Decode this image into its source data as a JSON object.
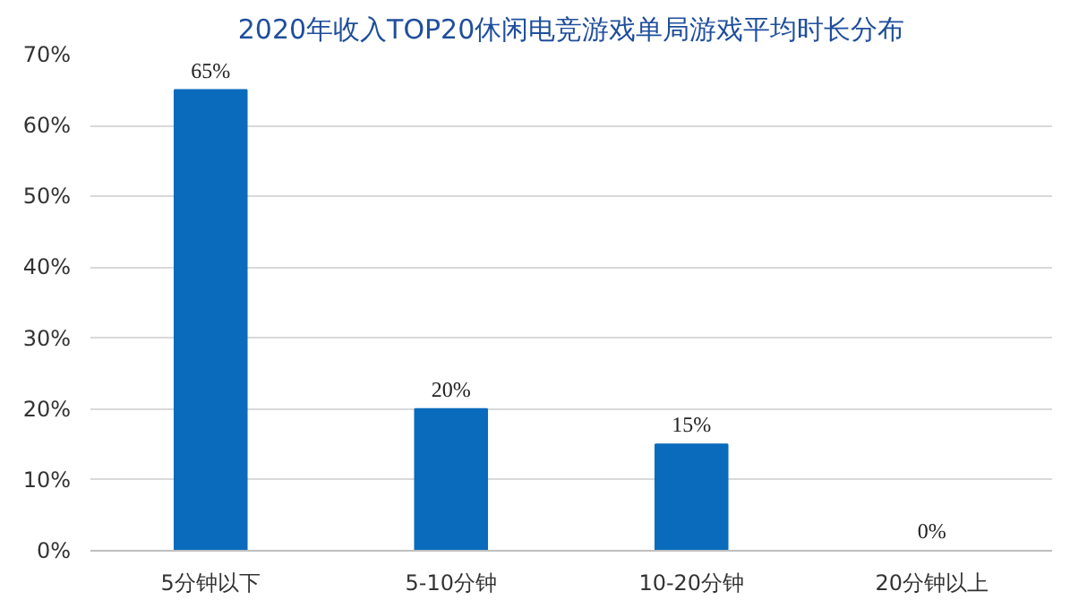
{
  "chart_data": {
    "type": "bar",
    "title": "2020年收入TOP20休闲电竞游戏单局游戏平均时长分布",
    "categories": [
      "5分钟以下",
      "5-10分钟",
      "10-20分钟",
      "20分钟以上"
    ],
    "values": [
      65,
      20,
      15,
      0
    ],
    "value_labels": [
      "65%",
      "20%",
      "15%",
      "0%"
    ],
    "color": "#0a6bbd",
    "ylim": [
      0,
      70
    ],
    "yticks": [
      {
        "value": 0,
        "label": "0%"
      },
      {
        "value": 10,
        "label": "10%"
      },
      {
        "value": 20,
        "label": "20%"
      },
      {
        "value": 30,
        "label": "30%"
      },
      {
        "value": 40,
        "label": "40%"
      },
      {
        "value": 50,
        "label": "50%"
      },
      {
        "value": 60,
        "label": "60%"
      },
      {
        "value": 70,
        "label": "70%"
      }
    ],
    "grid": "y"
  }
}
